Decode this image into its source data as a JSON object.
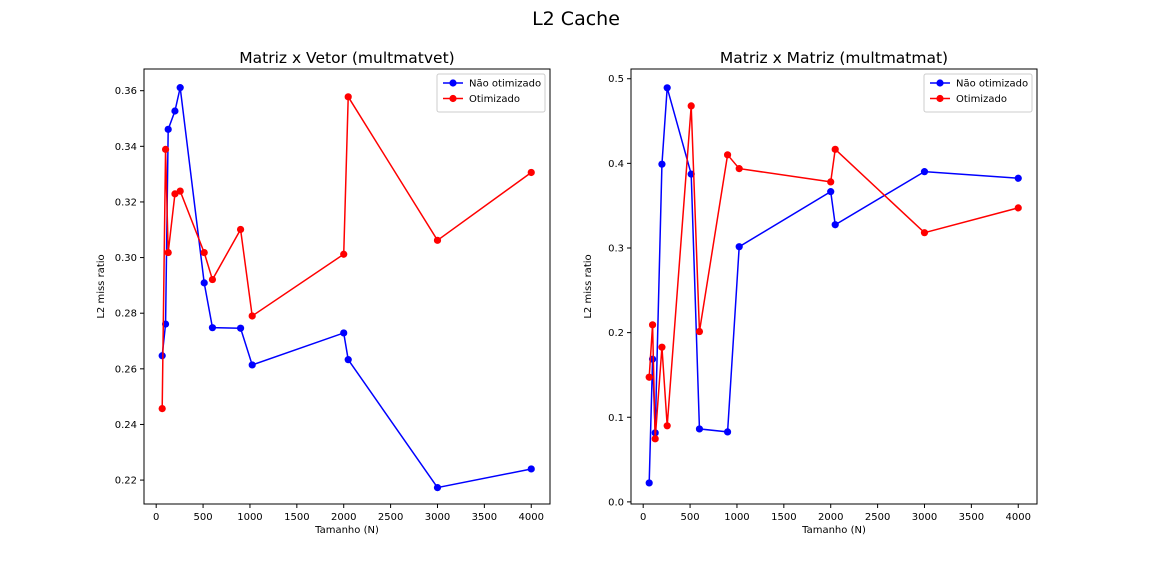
{
  "figure": {
    "title": "L2 Cache"
  },
  "chart_data": [
    {
      "type": "line",
      "title": "Matriz x Vetor (multmatvet)",
      "xlabel": "Tamanho (N)",
      "ylabel": "L2 miss ratio",
      "xlim": [
        -130,
        4200
      ],
      "ylim": [
        0.2114,
        0.3678
      ],
      "xticks": [
        0,
        500,
        1000,
        1500,
        2000,
        2500,
        3000,
        3500,
        4000
      ],
      "yticks": [
        0.22,
        0.24,
        0.26,
        0.28,
        0.3,
        0.32,
        0.34,
        0.36
      ],
      "ytick_labels": [
        "0.22",
        "0.24",
        "0.26",
        "0.28",
        "0.30",
        "0.32",
        "0.34",
        "0.36"
      ],
      "legend": "top-right",
      "series": [
        {
          "name": "Não otimizado",
          "color": "#0000ff",
          "x": [
            64,
            100,
            128,
            200,
            256,
            512,
            600,
            900,
            1024,
            2000,
            2048,
            3000,
            4000
          ],
          "y": [
            0.2647,
            0.2761,
            0.3461,
            0.3527,
            0.3611,
            0.2909,
            0.2748,
            0.2746,
            0.2614,
            0.2729,
            0.2633,
            0.2173,
            0.224
          ]
        },
        {
          "name": "Otimizado",
          "color": "#ff0000",
          "x": [
            64,
            100,
            128,
            200,
            256,
            512,
            600,
            900,
            1024,
            2000,
            2048,
            3000,
            4000
          ],
          "y": [
            0.2457,
            0.3389,
            0.3018,
            0.3229,
            0.3239,
            0.3018,
            0.2921,
            0.3101,
            0.279,
            0.3012,
            0.3578,
            0.3062,
            0.3306
          ]
        }
      ]
    },
    {
      "type": "line",
      "title": "Matriz x Matriz (multmatmat)",
      "xlabel": "Tamanho (N)",
      "ylabel": "L2 miss ratio",
      "xlim": [
        -130,
        4200
      ],
      "ylim": [
        -0.0025,
        0.5115
      ],
      "xticks": [
        0,
        500,
        1000,
        1500,
        2000,
        2500,
        3000,
        3500,
        4000
      ],
      "yticks": [
        0.0,
        0.1,
        0.2,
        0.3,
        0.4,
        0.5
      ],
      "ytick_labels": [
        "0.0",
        "0.1",
        "0.2",
        "0.3",
        "0.4",
        "0.5"
      ],
      "legend": "top-right",
      "series": [
        {
          "name": "Não otimizado",
          "color": "#0000ff",
          "x": [
            64,
            100,
            128,
            200,
            256,
            512,
            600,
            900,
            1024,
            2000,
            2048,
            3000,
            4000
          ],
          "y": [
            0.0224,
            0.1686,
            0.0816,
            0.399,
            0.4893,
            0.3873,
            0.0862,
            0.0827,
            0.3015,
            0.3666,
            0.3275,
            0.3902,
            0.3824
          ]
        },
        {
          "name": "Otimizado",
          "color": "#ff0000",
          "x": [
            64,
            100,
            128,
            200,
            256,
            512,
            600,
            900,
            1024,
            2000,
            2048,
            3000,
            4000
          ],
          "y": [
            0.1473,
            0.2092,
            0.0745,
            0.1828,
            0.0899,
            0.4679,
            0.2013,
            0.4101,
            0.3938,
            0.3781,
            0.4166,
            0.3181,
            0.3474
          ]
        }
      ]
    }
  ]
}
